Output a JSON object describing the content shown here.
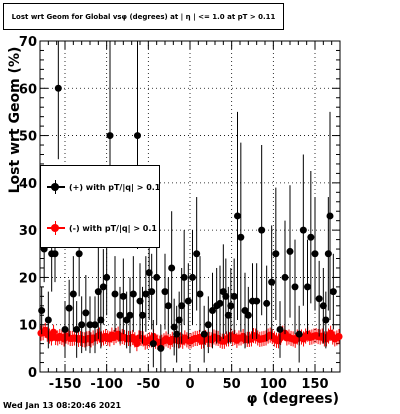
{
  "title": "Lost wrt Geom for Global vsφ (degrees) at | η | <= 1.0 at pT > 0.11",
  "timestamp": "Wed Jan 13 08:20:46 2021",
  "colors": {
    "positive": "#000000",
    "negative": "#ff0000",
    "frame": "#000000",
    "grid": "#000000"
  },
  "chart_data": {
    "type": "scatter",
    "title": "Lost wrt Geom for Global vsφ (degrees) at | η | <= 1.0 at pT > 0.11",
    "xlabel": "φ (degrees)",
    "ylabel": "Lost wrt Geom (%)",
    "xlim": [
      -180,
      180
    ],
    "ylim": [
      0,
      70
    ],
    "grid": true,
    "legend_position": "left",
    "x_ticks": [
      -150,
      -100,
      -50,
      0,
      50,
      100,
      150
    ],
    "y_ticks": [
      0,
      10,
      20,
      30,
      40,
      50,
      60,
      70
    ],
    "series": [
      {
        "name": "(+) with pT/|q| > 0.1",
        "color": "#000000",
        "x": [
          -178,
          -175,
          -170,
          -166,
          -162,
          -158,
          -150,
          -145,
          -140,
          -136,
          -133,
          -130,
          -125,
          -120,
          -114,
          -110,
          -107,
          -104,
          -100,
          -96,
          -90,
          -84,
          -80,
          -76,
          -72,
          -68,
          -63,
          -60,
          -57,
          -53,
          -49,
          -46,
          -44,
          -40,
          -35,
          -30,
          -26,
          -22,
          -19,
          -16,
          -13,
          -10,
          -7,
          -2,
          3,
          8,
          12,
          17,
          22,
          27,
          32,
          36,
          40,
          43,
          46,
          49,
          53,
          57,
          61,
          66,
          70,
          75,
          80,
          86,
          92,
          98,
          103,
          108,
          114,
          120,
          126,
          131,
          136,
          141,
          145,
          150,
          155,
          160,
          163,
          166,
          168,
          172
        ],
        "y": [
          13,
          26,
          11,
          25,
          25,
          60,
          9,
          13.5,
          16.5,
          9,
          25,
          10,
          12.5,
          10,
          10,
          17,
          11,
          18,
          20,
          50,
          16.5,
          12,
          16,
          11,
          12,
          16.5,
          50,
          15,
          12,
          16.5,
          21,
          17,
          6,
          20,
          5,
          17,
          14,
          22,
          9.5,
          8,
          11,
          14,
          20,
          15,
          20,
          25,
          16.5,
          8,
          10,
          13,
          14,
          14.5,
          17,
          16,
          12,
          14,
          16,
          33,
          28.5,
          13,
          12,
          15,
          15,
          30,
          14.5,
          19,
          25,
          9,
          20,
          25.5,
          18,
          8,
          30,
          18,
          28.5,
          25,
          15.5,
          14,
          11,
          25,
          33,
          17
        ],
        "yerr": [
          5,
          7,
          6,
          8,
          6,
          15,
          6,
          6,
          8,
          6,
          9,
          6,
          8,
          6,
          6,
          10,
          6,
          8,
          8,
          22,
          8,
          6,
          8,
          6,
          8,
          8,
          24,
          8,
          6,
          8,
          10,
          8,
          5,
          10,
          5,
          8,
          6,
          12,
          6,
          6,
          6,
          8,
          10,
          8,
          10,
          12,
          8,
          6,
          6,
          8,
          8,
          8,
          10,
          8,
          6,
          8,
          8,
          22,
          20,
          8,
          6,
          8,
          8,
          18,
          8,
          12,
          14,
          6,
          12,
          14,
          10,
          6,
          16,
          10,
          14,
          12,
          8,
          8,
          6,
          12,
          22,
          8
        ]
      },
      {
        "name": "(-) with pT/|q| > 0.1",
        "color": "#ff0000",
        "y_values_by_bin": [
          8.2,
          8.3,
          8.8,
          8.0,
          7.6,
          7.2,
          8.4,
          7.3,
          7.2,
          7.5,
          7.3,
          7.0,
          7.6,
          7.4,
          7.1,
          7.1,
          7.2,
          7.1,
          6.9,
          7.1,
          6.9,
          6.8,
          7.0,
          7.1,
          6.8,
          7.2,
          7.2,
          7.5,
          7.8,
          7.0,
          7.2,
          7.5,
          7.2,
          7.0,
          7.8,
          7.3,
          7.7,
          8.0,
          7.2,
          7.5,
          7.3,
          7.0,
          7.1,
          7.0,
          7.3,
          6.8,
          6.0,
          7.2,
          7.1,
          7.0,
          6.3,
          6.5,
          6.8,
          6.8,
          7.5,
          6.5,
          6.3,
          6.1,
          6.3,
          6.6,
          7.0,
          6.7,
          6.4,
          6.9,
          6.8,
          6.8,
          6.6,
          6.8,
          6.5,
          7.2,
          6.8,
          6.5,
          6.6,
          6.9,
          7.1,
          7.1,
          7.3,
          6.5,
          6.6,
          7.3,
          6.9,
          6.9,
          6.8,
          7.4,
          7.2,
          7.1,
          6.7,
          6.5,
          6.5,
          7.0,
          7.0,
          7.7,
          7.1,
          7.3,
          6.7,
          7.2,
          7.2,
          7.5,
          6.8,
          6.9,
          6.9,
          7.0,
          7.7,
          7.6,
          7.2,
          6.9,
          7.0,
          7.1,
          7.2,
          7.6,
          7.8,
          7.5,
          7.0,
          6.7,
          6.6,
          7.3,
          8.2,
          8.2,
          7.2,
          7.4,
          7.1,
          7.0,
          6.7,
          7.4,
          7.2,
          7.4,
          7.0,
          7.6,
          8.0,
          7.3,
          7.4,
          7.6,
          7.7,
          7.5,
          7.4,
          7.6,
          7.0,
          7.0,
          7.6,
          8.2,
          7.4,
          7.0,
          7.2,
          7.5
        ],
        "bin_range": [
          -180,
          180
        ]
      }
    ]
  }
}
